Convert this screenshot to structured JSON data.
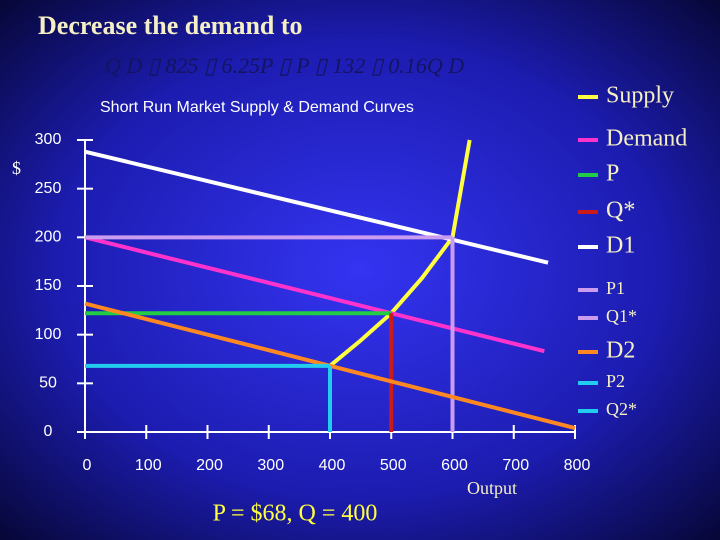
{
  "header": {
    "title": "Decrease the demand to",
    "equation": "Q D ▯ 825 ▯ 6.25P ▯ P ▯ 132 ▯ 0.16Q D"
  },
  "chart_data": {
    "type": "line",
    "title": "Short Run Market Supply & Demand Curves",
    "y_label": "$",
    "x_label": "Output",
    "annotation": "P = $68,  Q = 400",
    "xlim": [
      0,
      800
    ],
    "ylim": [
      0,
      300
    ],
    "xticks": [
      0,
      100,
      200,
      300,
      400,
      500,
      600,
      700,
      800
    ],
    "yticks": [
      0,
      50,
      100,
      150,
      200,
      250,
      300
    ],
    "series": [
      {
        "name": "Supply",
        "color": "#ffff40",
        "x": [
          400,
          450,
          500,
          550,
          600,
          628
        ],
        "values": [
          68,
          94,
          122,
          158,
          200,
          300
        ]
      },
      {
        "name": "Demand",
        "color": "#ff33cc",
        "x": [
          0,
          750
        ],
        "values": [
          200,
          83
        ]
      },
      {
        "name": "P",
        "color": "#22cc44",
        "x": [
          0,
          500
        ],
        "values": [
          122,
          122
        ]
      },
      {
        "name": "Q*",
        "color": "#cc1a1a",
        "x": [
          500,
          500
        ],
        "values": [
          0,
          122
        ]
      },
      {
        "name": "D1",
        "color": "#ffffff",
        "x": [
          0,
          756
        ],
        "values": [
          288,
          174
        ]
      },
      {
        "name": "P1",
        "color": "#c99cf0",
        "x": [
          0,
          600
        ],
        "values": [
          200,
          200
        ]
      },
      {
        "name": "Q1*",
        "color": "#c99cf0",
        "x": [
          600,
          600
        ],
        "values": [
          0,
          200
        ]
      },
      {
        "name": "D2",
        "color": "#ff8822",
        "x": [
          0,
          800
        ],
        "values": [
          132,
          4
        ]
      },
      {
        "name": "P2",
        "color": "#22ccee",
        "x": [
          0,
          400
        ],
        "values": [
          68,
          68
        ]
      },
      {
        "name": "Q2*",
        "color": "#22ccee",
        "x": [
          400,
          400
        ],
        "values": [
          0,
          68
        ]
      }
    ]
  }
}
